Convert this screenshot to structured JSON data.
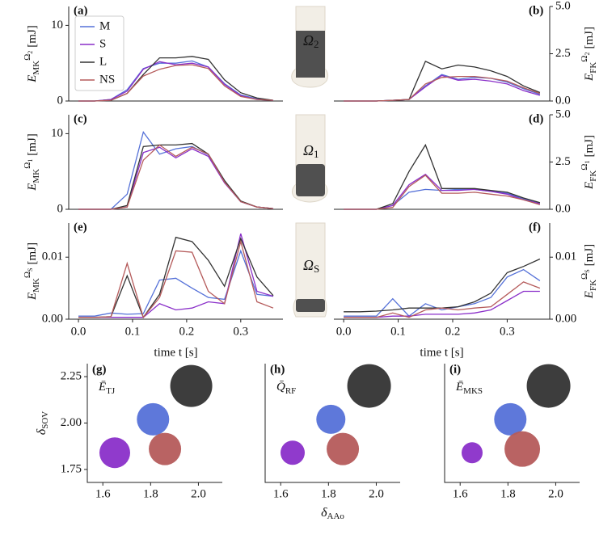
{
  "chart_data": [
    {
      "type": "line",
      "panel_label": "(a)",
      "ylabel": {
        "base": "E",
        "sub": "MK",
        "sup": "Ω",
        "sup_sub": "2",
        "unit": "[mJ]"
      },
      "x": [
        0,
        0.03,
        0.06,
        0.09,
        0.12,
        0.15,
        0.18,
        0.21,
        0.24,
        0.27,
        0.3,
        0.33,
        0.36
      ],
      "xlim": [
        -0.018,
        0.378
      ],
      "ylim": [
        0,
        12.5
      ],
      "yticks": [
        0,
        10
      ],
      "legend": "upper left",
      "series": [
        {
          "name": "M",
          "color": "#5571d8",
          "values": [
            0,
            0,
            0.2,
            1.5,
            4.3,
            5,
            5,
            5.3,
            4.5,
            2.3,
            0.8,
            0.3,
            0.1
          ]
        },
        {
          "name": "S",
          "color": "#8a2fc9",
          "values": [
            0,
            0,
            0.2,
            1.3,
            4.2,
            5.2,
            4.8,
            5,
            4.5,
            2.2,
            0.7,
            0.2,
            0.1
          ]
        },
        {
          "name": "L",
          "color": "#333333",
          "values": [
            0,
            0,
            0.1,
            1.0,
            3.5,
            5.7,
            5.7,
            5.9,
            5.5,
            2.8,
            1.1,
            0.4,
            0.1
          ]
        },
        {
          "name": "NS",
          "color": "#b55b5b",
          "values": [
            0,
            0,
            0.1,
            1.0,
            3.3,
            4.2,
            4.7,
            4.8,
            4.3,
            2.0,
            0.6,
            0.2,
            0.1
          ]
        }
      ]
    },
    {
      "type": "line",
      "panel_label": "(b)",
      "ylabel": {
        "base": "E",
        "sub": "FK",
        "sup": "Ω",
        "sup_sub": "2",
        "unit": "[mJ]"
      },
      "x": [
        0,
        0.03,
        0.06,
        0.09,
        0.12,
        0.15,
        0.18,
        0.21,
        0.24,
        0.27,
        0.3,
        0.33,
        0.36
      ],
      "xlim": [
        -0.018,
        0.378
      ],
      "ylim": [
        0,
        5.0
      ],
      "yticks": [
        {
          "value": 0,
          "label": "0.0"
        },
        2.5,
        {
          "value": 5,
          "label": "5.0"
        }
      ],
      "series": [
        {
          "color": "#5571d8",
          "values": [
            0,
            0,
            0,
            0.04,
            0.08,
            0.8,
            1.4,
            1.15,
            1.25,
            1.2,
            1.0,
            0.65,
            0.35
          ]
        },
        {
          "color": "#8a2fc9",
          "values": [
            0,
            0,
            0,
            0.04,
            0.08,
            0.75,
            1.35,
            1.1,
            1.15,
            1.05,
            0.9,
            0.55,
            0.3
          ]
        },
        {
          "color": "#333333",
          "values": [
            0,
            0,
            0,
            0.04,
            0.08,
            2.1,
            1.7,
            1.9,
            1.8,
            1.6,
            1.3,
            0.8,
            0.45
          ]
        },
        {
          "color": "#b55b5b",
          "values": [
            0,
            0,
            0,
            0.04,
            0.08,
            0.9,
            1.25,
            1.3,
            1.3,
            1.2,
            1.05,
            0.7,
            0.4
          ]
        }
      ]
    },
    {
      "type": "line",
      "panel_label": "(c)",
      "ylabel": {
        "base": "E",
        "sub": "MK",
        "sup": "Ω",
        "sup_sub": "1",
        "unit": "[mJ]"
      },
      "x": [
        0,
        0.03,
        0.06,
        0.09,
        0.12,
        0.15,
        0.18,
        0.21,
        0.24,
        0.27,
        0.3,
        0.33,
        0.36
      ],
      "xlim": [
        -0.018,
        0.378
      ],
      "ylim": [
        0,
        12.5
      ],
      "yticks": [
        0,
        10
      ],
      "series": [
        {
          "color": "#5571d8",
          "values": [
            0,
            0,
            0,
            2,
            10.2,
            7.3,
            8,
            8.3,
            7.2,
            3.8,
            1,
            0.3,
            0.1
          ]
        },
        {
          "color": "#8a2fc9",
          "values": [
            0,
            0,
            0,
            0.3,
            7.5,
            8.2,
            6.8,
            8,
            7,
            3.5,
            1,
            0.3,
            0.1
          ]
        },
        {
          "color": "#333333",
          "values": [
            0,
            0,
            0,
            0.5,
            8.3,
            8.5,
            8.5,
            8.7,
            7.3,
            3.8,
            1.1,
            0.3,
            0.1
          ]
        },
        {
          "color": "#b55b5b",
          "values": [
            0,
            0,
            0,
            0.3,
            6.5,
            8.5,
            7,
            8.2,
            7.3,
            3.6,
            1,
            0.3,
            0.1
          ]
        }
      ]
    },
    {
      "type": "line",
      "panel_label": "(d)",
      "ylabel": {
        "base": "E",
        "sub": "FK",
        "sup": "Ω",
        "sup_sub": "1",
        "unit": "[mJ]"
      },
      "x": [
        0,
        0.03,
        0.06,
        0.09,
        0.12,
        0.15,
        0.18,
        0.21,
        0.24,
        0.27,
        0.3,
        0.33,
        0.36
      ],
      "xlim": [
        -0.018,
        0.378
      ],
      "ylim": [
        0,
        5.0
      ],
      "yticks": [
        {
          "value": 0,
          "label": "0.0"
        },
        2.5,
        {
          "value": 5,
          "label": "5.0"
        }
      ],
      "series": [
        {
          "color": "#5571d8",
          "values": [
            0,
            0,
            0,
            0.2,
            0.9,
            1.05,
            1.0,
            1.05,
            1.05,
            0.95,
            0.85,
            0.55,
            0.3
          ]
        },
        {
          "color": "#8a2fc9",
          "values": [
            0,
            0,
            0,
            0.2,
            1.3,
            1.85,
            1.0,
            1.0,
            1.05,
            0.95,
            0.8,
            0.5,
            0.3
          ]
        },
        {
          "color": "#333333",
          "values": [
            0,
            0,
            0,
            0.3,
            2.0,
            3.4,
            1.1,
            1.1,
            1.1,
            1.0,
            0.9,
            0.6,
            0.35
          ]
        },
        {
          "color": "#b55b5b",
          "values": [
            0,
            0,
            0,
            0.1,
            1.2,
            1.8,
            0.85,
            0.85,
            0.9,
            0.8,
            0.7,
            0.5,
            0.25
          ]
        }
      ]
    },
    {
      "type": "line",
      "panel_label": "(e)",
      "ylabel": {
        "base": "E",
        "sub": "MK",
        "sup": "Ω",
        "sup_sub": "S",
        "unit": "[mJ]"
      },
      "xlabel": "time t [s]",
      "x": [
        0,
        0.03,
        0.06,
        0.09,
        0.12,
        0.15,
        0.18,
        0.21,
        0.24,
        0.27,
        0.3,
        0.33,
        0.36
      ],
      "xlim": [
        -0.018,
        0.378
      ],
      "ylim": [
        0,
        0.0155
      ],
      "yticks": [
        {
          "value": 0,
          "label": "0.00"
        },
        0.01
      ],
      "xticks": [
        {
          "value": 0,
          "label": "0.0"
        },
        0.1,
        0.2,
        0.3
      ],
      "series": [
        {
          "color": "#5571d8",
          "values": [
            0.0005,
            0.0005,
            0.001,
            0.0008,
            0.0009,
            0.0063,
            0.0066,
            0.005,
            0.0035,
            0.0032,
            0.011,
            0.004,
            0.0037
          ]
        },
        {
          "color": "#8a2fc9",
          "values": [
            0.0003,
            0.0003,
            0.0003,
            0.0003,
            0.0003,
            0.0025,
            0.0015,
            0.0018,
            0.0028,
            0.0025,
            0.0138,
            0.0045,
            0.0037
          ]
        },
        {
          "color": "#333333",
          "values": [
            0.0003,
            0.0003,
            0.0004,
            0.007,
            0.0003,
            0.004,
            0.0132,
            0.0125,
            0.0095,
            0.0053,
            0.013,
            0.0068,
            0.0038
          ]
        },
        {
          "color": "#b55b5b",
          "values": [
            0.0003,
            0.0003,
            0.0004,
            0.009,
            0.0003,
            0.0035,
            0.011,
            0.0108,
            0.0045,
            0.0025,
            0.0125,
            0.0028,
            0.0018
          ]
        }
      ]
    },
    {
      "type": "line",
      "panel_label": "(f)",
      "ylabel": {
        "base": "E",
        "sub": "FK",
        "sup": "Ω",
        "sup_sub": "S",
        "unit": "[mJ]"
      },
      "xlabel": "time t [s]",
      "x": [
        0,
        0.03,
        0.06,
        0.09,
        0.12,
        0.15,
        0.18,
        0.21,
        0.24,
        0.27,
        0.3,
        0.33,
        0.36
      ],
      "xlim": [
        -0.018,
        0.378
      ],
      "ylim": [
        0,
        0.0155
      ],
      "yticks": [
        {
          "value": 0,
          "label": "0.00"
        },
        0.01
      ],
      "xticks": [
        {
          "value": 0,
          "label": "0.0"
        },
        0.1,
        0.2,
        0.3
      ],
      "series": [
        {
          "color": "#5571d8",
          "values": [
            0.0005,
            0.0005,
            0.0005,
            0.0033,
            0.0005,
            0.0025,
            0.0015,
            0.002,
            0.0025,
            0.0035,
            0.0068,
            0.008,
            0.0062
          ]
        },
        {
          "color": "#8a2fc9",
          "values": [
            0.0003,
            0.0003,
            0.0003,
            0.0005,
            0.0005,
            0.0008,
            0.0008,
            0.0008,
            0.001,
            0.0015,
            0.003,
            0.0045,
            0.0045
          ]
        },
        {
          "color": "#333333",
          "values": [
            0.0012,
            0.0012,
            0.0013,
            0.0015,
            0.0018,
            0.0018,
            0.0018,
            0.002,
            0.0028,
            0.0042,
            0.0075,
            0.0085,
            0.0097
          ]
        },
        {
          "color": "#b55b5b",
          "values": [
            0.0003,
            0.0003,
            0.0003,
            0.001,
            0.0003,
            0.0015,
            0.0018,
            0.0015,
            0.0018,
            0.002,
            0.004,
            0.006,
            0.005
          ]
        }
      ]
    },
    {
      "type": "scatter",
      "panel_label": "(g)",
      "annotation": {
        "base": "Ē",
        "sub": "TJ"
      },
      "ylabel": {
        "base": "δ",
        "sub": "SOV"
      },
      "x": [
        1.81,
        1.65,
        1.97,
        1.86
      ],
      "y": [
        2.02,
        1.84,
        2.2,
        1.86
      ],
      "sizes": [
        20,
        19,
        26,
        20
      ],
      "colors": [
        "#5571d8",
        "#8a2fc9",
        "#333333",
        "#b55b5b"
      ],
      "xlim": [
        1.535,
        2.1
      ],
      "ylim": [
        1.68,
        2.32
      ],
      "xticks": [
        1.6,
        1.8,
        {
          "value": 2,
          "label": "2.0"
        }
      ],
      "yticks": [
        2.25,
        {
          "value": 2,
          "label": "2.00"
        },
        1.75
      ]
    },
    {
      "type": "scatter",
      "panel_label": "(h)",
      "annotation": {
        "base": "Q̄",
        "sub": "RF"
      },
      "xlabel": {
        "base": "δ",
        "sub": "AAo"
      },
      "x": [
        1.81,
        1.65,
        1.97,
        1.86
      ],
      "y": [
        2.02,
        1.84,
        2.2,
        1.86
      ],
      "sizes": [
        18,
        15,
        27,
        20
      ],
      "colors": [
        "#5571d8",
        "#8a2fc9",
        "#333333",
        "#b55b5b"
      ],
      "xlim": [
        1.535,
        2.1
      ],
      "ylim": [
        1.68,
        2.32
      ],
      "xticks": [
        1.6,
        1.8,
        {
          "value": 2,
          "label": "2.0"
        }
      ]
    },
    {
      "type": "scatter",
      "panel_label": "(i)",
      "annotation": {
        "base": "Ē",
        "sub": "MKS"
      },
      "x": [
        1.81,
        1.65,
        1.97,
        1.86
      ],
      "y": [
        2.02,
        1.84,
        2.2,
        1.86
      ],
      "sizes": [
        20,
        13,
        27,
        22
      ],
      "colors": [
        "#5571d8",
        "#8a2fc9",
        "#333333",
        "#b55b5b"
      ],
      "xlim": [
        1.535,
        2.1
      ],
      "ylim": [
        1.68,
        2.32
      ],
      "xticks": [
        1.6,
        1.8,
        {
          "value": 2,
          "label": "2.0"
        }
      ]
    }
  ],
  "illustration": {
    "labels": [
      {
        "base": "Ω",
        "sub": "2"
      },
      {
        "base": "Ω",
        "sub": "1"
      },
      {
        "base": "Ω",
        "sub": "S"
      }
    ]
  }
}
